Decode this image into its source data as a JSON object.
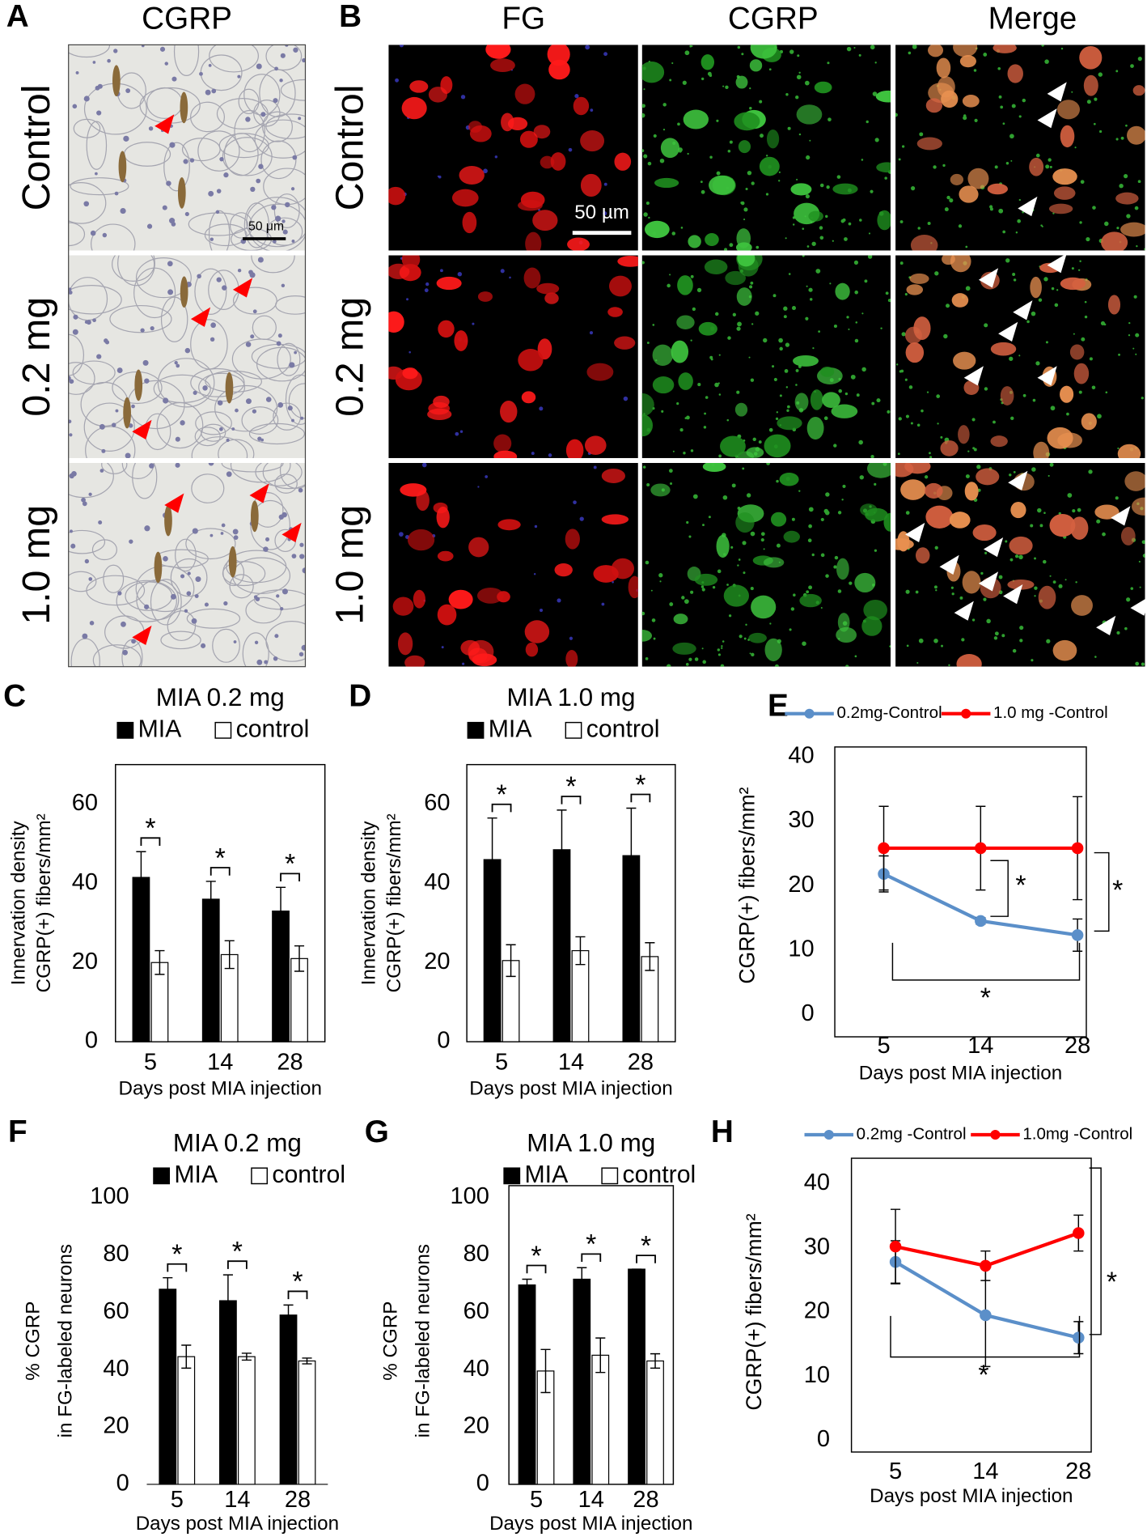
{
  "figure": {
    "panel_labels": [
      "A",
      "B",
      "C",
      "D",
      "E",
      "F",
      "G",
      "H"
    ],
    "column_headers": [
      "CGRP",
      "FG",
      "CGRP",
      "Merge"
    ],
    "row_labels_a": [
      "Control",
      "0.2 mg",
      "1.0 mg"
    ],
    "row_labels_b": [
      "Control",
      "0.2 mg",
      "1.0 mg"
    ],
    "scale_bars": [
      "50 μm",
      "50 µm"
    ]
  },
  "chart_data": [
    {
      "type": "bar",
      "title": "MIA 0.2 mg",
      "categories": [
        "5",
        "14",
        "28"
      ],
      "series": [
        {
          "name": "MIA",
          "color": "#000000",
          "values": [
            41.5,
            36,
            33
          ],
          "errors": [
            6.5,
            4.5,
            6
          ]
        },
        {
          "name": "control",
          "color": "#ffffff",
          "values": [
            20,
            22,
            21
          ],
          "errors": [
            3,
            3.5,
            3.2
          ]
        }
      ],
      "ylim": [
        0,
        70
      ],
      "yticks": [
        0,
        20,
        40,
        60
      ],
      "ylabel": [
        "Innervation density",
        "CGRP(+) fibers/mm²"
      ],
      "xlabel": "Days post MIA injection",
      "annotations": [
        "*",
        "*",
        "*"
      ],
      "frame": true
    },
    {
      "type": "bar",
      "title": "MIA 1.0 mg",
      "categories": [
        "5",
        "14",
        "28"
      ],
      "series": [
        {
          "name": "MIA",
          "color": "#000000",
          "values": [
            46,
            48.5,
            47
          ],
          "errors": [
            10.5,
            10,
            12
          ]
        },
        {
          "name": "control",
          "color": "#ffffff",
          "values": [
            20.5,
            23,
            21.5
          ],
          "errors": [
            4,
            3.5,
            3.5
          ]
        }
      ],
      "ylim": [
        0,
        70
      ],
      "yticks": [
        0,
        20,
        40,
        60
      ],
      "ylabel": [
        "Innervation density",
        "CGRP(+) fibers/mm²"
      ],
      "xlabel": "Days post MIA injection",
      "annotations": [
        "*",
        "*",
        "*"
      ],
      "frame": true
    },
    {
      "type": "line",
      "categories": [
        "5",
        "14",
        "28"
      ],
      "series": [
        {
          "name": "0.2mg-Control",
          "color": "#5b8fc9",
          "values": [
            21.8,
            14.5,
            12.3
          ],
          "errors": [
            2.8,
            0.5,
            2.5
          ]
        },
        {
          "name": "1.0 mg -Control",
          "color": "#ff0000",
          "values": [
            25.8,
            25.8,
            25.8
          ],
          "errors": [
            6.5,
            6.5,
            8
          ]
        }
      ],
      "ylim": [
        0,
        40
      ],
      "yticks": [
        0,
        10,
        20,
        30,
        40
      ],
      "ylabel": "CGRP(+) fibers/mm²",
      "xlabel": "Days post MIA injection",
      "annotations": [
        "*",
        "*",
        "*"
      ],
      "frame": true
    },
    {
      "type": "bar",
      "title": "MIA 0.2 mg",
      "categories": [
        "5",
        "14",
        "28"
      ],
      "series": [
        {
          "name": "MIA",
          "color": "#000000",
          "values": [
            68,
            64,
            59
          ],
          "errors": [
            4,
            9,
            3.5
          ]
        },
        {
          "name": "control",
          "color": "#ffffff",
          "values": [
            44.5,
            44.5,
            43
          ],
          "errors": [
            4,
            1.2,
            1
          ]
        }
      ],
      "ylim": [
        0,
        100
      ],
      "yticks": [
        0,
        20,
        40,
        60,
        80,
        100
      ],
      "ylabel": [
        "% CGRP",
        "in FG-labeled neurons"
      ],
      "xlabel": "Days post MIA injection",
      "annotations": [
        "*",
        "*",
        "*"
      ],
      "frame": false
    },
    {
      "type": "bar",
      "title": "MIA 1.0 mg",
      "categories": [
        "5",
        "14",
        "28"
      ],
      "series": [
        {
          "name": "MIA",
          "color": "#000000",
          "values": [
            69.5,
            71.5,
            75
          ],
          "errors": [
            2,
            4,
            0
          ]
        },
        {
          "name": "control",
          "color": "#ffffff",
          "values": [
            39.5,
            45,
            43
          ],
          "errors": [
            7.5,
            6,
            2.5
          ]
        }
      ],
      "ylim": [
        0,
        100
      ],
      "yticks": [
        0,
        20,
        40,
        60,
        80,
        100
      ],
      "ylabel": [
        "% CGRP",
        "in FG-labeled neurons"
      ],
      "xlabel": "Days post MIA injection",
      "annotations": [
        "*",
        "*",
        "*"
      ],
      "frame": true
    },
    {
      "type": "line",
      "categories": [
        "5",
        "14",
        "28"
      ],
      "series": [
        {
          "name": "0.2mg -Control",
          "color": "#5b8fc9",
          "values": [
            27.8,
            19.5,
            16
          ],
          "errors": [
            3.3,
            8,
            2.5
          ]
        },
        {
          "name": "1.0mg -Control",
          "color": "#ff0000",
          "values": [
            30.2,
            27.2,
            32.3
          ],
          "errors": [
            5.8,
            2.3,
            2.8
          ]
        }
      ],
      "ylim": [
        0,
        40
      ],
      "yticks": [
        0,
        10,
        20,
        30,
        40
      ],
      "ylabel": "CGRP(+) fibers/mm²",
      "xlabel": "Days post MIA injection",
      "annotations": [
        "*",
        "*"
      ],
      "frame": true
    }
  ]
}
